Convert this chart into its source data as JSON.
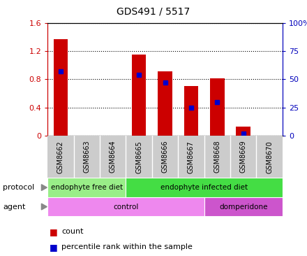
{
  "title": "GDS491 / 5517",
  "samples": [
    "GSM8662",
    "GSM8663",
    "GSM8664",
    "GSM8665",
    "GSM8666",
    "GSM8667",
    "GSM8668",
    "GSM8669",
    "GSM8670"
  ],
  "count_values": [
    1.37,
    0.0,
    0.0,
    1.15,
    0.91,
    0.71,
    0.81,
    0.13,
    0.0
  ],
  "percentile_values": [
    57,
    0,
    0,
    54,
    47,
    25,
    30,
    2,
    0
  ],
  "ylim_left": [
    0,
    1.6
  ],
  "ylim_right": [
    0,
    100
  ],
  "yticks_left": [
    0,
    0.4,
    0.8,
    1.2,
    1.6
  ],
  "yticks_right": [
    0,
    25,
    50,
    75,
    100
  ],
  "ytick_labels_left": [
    "0",
    "0.4",
    "0.8",
    "1.2",
    "1.6"
  ],
  "ytick_labels_right": [
    "0",
    "25",
    "50",
    "75",
    "100%"
  ],
  "bar_color": "#cc0000",
  "dot_color": "#0000cc",
  "bar_width": 0.55,
  "protocol_groups": [
    {
      "label": "endophyte free diet",
      "start": 0,
      "end": 3,
      "color": "#99ee88"
    },
    {
      "label": "endophyte infected diet",
      "start": 3,
      "end": 9,
      "color": "#44dd44"
    }
  ],
  "agent_groups": [
    {
      "label": "control",
      "start": 0,
      "end": 6,
      "color": "#ee88ee"
    },
    {
      "label": "domperidone",
      "start": 6,
      "end": 9,
      "color": "#cc55cc"
    }
  ],
  "protocol_label": "protocol",
  "agent_label": "agent",
  "legend_count_label": "count",
  "legend_percentile_label": "percentile rank within the sample",
  "grid_color": "#888888",
  "background_color": "#ffffff",
  "tick_area_color": "#cccccc",
  "axis_color_left": "#cc0000",
  "axis_color_right": "#0000bb"
}
